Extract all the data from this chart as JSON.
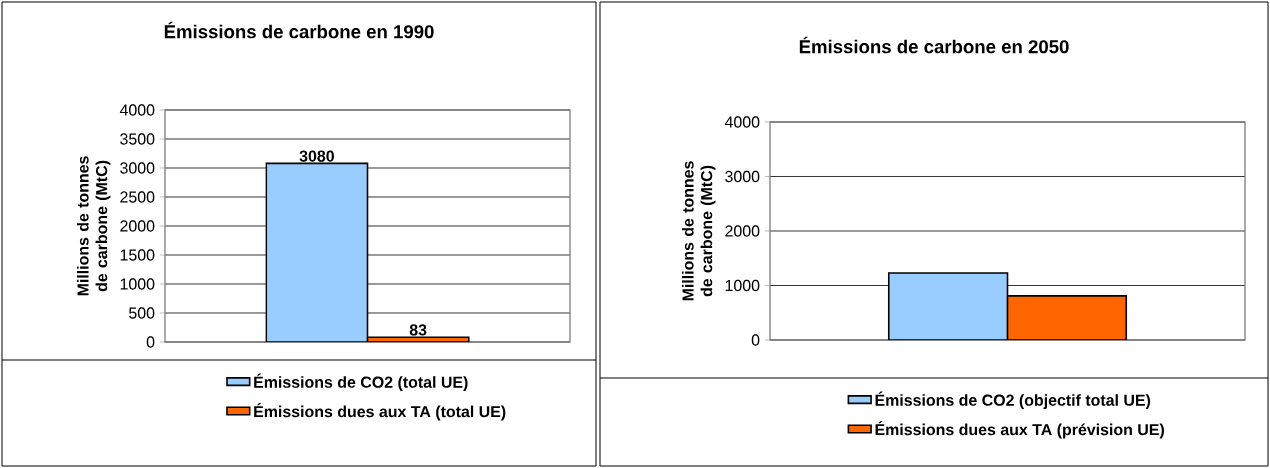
{
  "chart_data": [
    {
      "type": "bar",
      "title": "Émissions de carbone en 1990",
      "ylabel": "Millions de tonnes de carbone (MtC)",
      "categories": [
        null
      ],
      "series": [
        {
          "name": "Émissions de CO2 (total UE)",
          "color": "#99ccff",
          "values": [
            3080
          ]
        },
        {
          "name": "Émissions dues aux TA (total UE)",
          "color": "#ff6600",
          "values": [
            83
          ]
        }
      ],
      "ylim": [
        0,
        4000
      ],
      "yticks": [
        0,
        500,
        1000,
        1500,
        2000,
        2500,
        3000,
        3500,
        4000
      ],
      "grid": "y",
      "legend": "bottom",
      "data_labels": true
    },
    {
      "type": "bar",
      "title": "Émissions de carbone en 2050",
      "ylabel": "Millions de tonnes de carbone (MtC)",
      "categories": [
        null
      ],
      "series": [
        {
          "name": "Émissions de CO2 (objectif total UE)",
          "color": "#99ccff",
          "values": [
            1230
          ]
        },
        {
          "name": "Émissions dues aux TA (prévision UE)",
          "color": "#ff6600",
          "values": [
            810
          ]
        }
      ],
      "ylim": [
        0,
        4000
      ],
      "yticks": [
        0,
        1000,
        2000,
        3000,
        4000
      ],
      "grid": "y",
      "legend": "bottom"
    }
  ]
}
